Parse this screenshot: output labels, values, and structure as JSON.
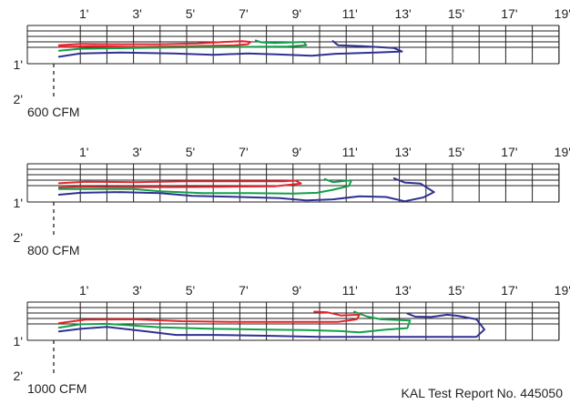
{
  "x_ticks": [
    "1'",
    "3'",
    "5'",
    "7'",
    "9'",
    "11'",
    "13'",
    "15'",
    "17'",
    "19'"
  ],
  "y_ticks": [
    "1'",
    "2'"
  ],
  "report_number": "KAL Test Report No. 445050",
  "colors": {
    "red": "#e1262d",
    "green": "#12a04a",
    "blue": "#2e3192",
    "grid": "#231f20"
  },
  "chart_data": [
    {
      "type": "line",
      "label": "600 CFM",
      "x_unit": "ft",
      "y_unit": "ft",
      "xlim": [
        0,
        20
      ],
      "ylim": [
        0,
        2
      ],
      "series": [
        {
          "color": "red",
          "points": [
            [
              0.2,
              0.52
            ],
            [
              1,
              0.48
            ],
            [
              2.5,
              0.49
            ],
            [
              4,
              0.49
            ],
            [
              5.4,
              0.47
            ],
            [
              6.4,
              0.43
            ],
            [
              7.1,
              0.41
            ],
            [
              7.4,
              0.43
            ],
            [
              7.3,
              0.49
            ],
            [
              6.8,
              0.52
            ],
            [
              5.2,
              0.54
            ],
            [
              3.2,
              0.56
            ],
            [
              1.5,
              0.54
            ],
            [
              0.2,
              0.56
            ]
          ]
        },
        {
          "color": "green",
          "points": [
            [
              0.2,
              0.66
            ],
            [
              1,
              0.61
            ],
            [
              3,
              0.59
            ],
            [
              5.2,
              0.57
            ],
            [
              7.3,
              0.56
            ],
            [
              8.8,
              0.55
            ],
            [
              9.5,
              0.52
            ],
            [
              9.4,
              0.43
            ],
            [
              8.3,
              0.46
            ],
            [
              7.8,
              0.44
            ],
            [
              7.6,
              0.39
            ]
          ]
        },
        {
          "color": "blue",
          "points": [
            [
              0.2,
              0.82
            ],
            [
              1,
              0.73
            ],
            [
              2.5,
              0.71
            ],
            [
              4.5,
              0.73
            ],
            [
              6,
              0.77
            ],
            [
              7.3,
              0.73
            ],
            [
              8.5,
              0.76
            ],
            [
              9.7,
              0.79
            ],
            [
              10.6,
              0.74
            ],
            [
              12.1,
              0.71
            ],
            [
              13.1,
              0.68
            ],
            [
              12.8,
              0.59
            ],
            [
              11.6,
              0.54
            ],
            [
              10.7,
              0.52
            ],
            [
              10.5,
              0.41
            ]
          ]
        }
      ]
    },
    {
      "type": "line",
      "label": "800 CFM",
      "x_unit": "ft",
      "y_unit": "ft",
      "xlim": [
        0,
        20
      ],
      "ylim": [
        0,
        2
      ],
      "series": [
        {
          "color": "red",
          "points": [
            [
              0.2,
              0.51
            ],
            [
              1.2,
              0.47
            ],
            [
              3,
              0.48
            ],
            [
              5,
              0.46
            ],
            [
              7,
              0.46
            ],
            [
              8.6,
              0.46
            ],
            [
              9.1,
              0.44
            ],
            [
              9.3,
              0.52
            ],
            [
              8.3,
              0.59
            ],
            [
              6.5,
              0.6
            ],
            [
              4.5,
              0.61
            ],
            [
              2.5,
              0.61
            ],
            [
              1,
              0.6
            ],
            [
              0.2,
              0.62
            ]
          ]
        },
        {
          "color": "green",
          "points": [
            [
              0.2,
              0.66
            ],
            [
              1.4,
              0.66
            ],
            [
              3,
              0.66
            ],
            [
              4,
              0.72
            ],
            [
              5.6,
              0.77
            ],
            [
              7.4,
              0.77
            ],
            [
              9,
              0.78
            ],
            [
              9.9,
              0.76
            ],
            [
              10.5,
              0.68
            ],
            [
              11.1,
              0.58
            ],
            [
              11.2,
              0.43
            ],
            [
              10.5,
              0.48
            ],
            [
              10.2,
              0.4
            ]
          ]
        },
        {
          "color": "blue",
          "points": [
            [
              0.2,
              0.81
            ],
            [
              1,
              0.76
            ],
            [
              2.5,
              0.74
            ],
            [
              4,
              0.77
            ],
            [
              5.2,
              0.84
            ],
            [
              7,
              0.87
            ],
            [
              8.5,
              0.9
            ],
            [
              9.5,
              0.96
            ],
            [
              10.5,
              0.93
            ],
            [
              11.5,
              0.85
            ],
            [
              12.5,
              0.87
            ],
            [
              13.2,
              0.98
            ],
            [
              13.9,
              0.88
            ],
            [
              14.3,
              0.74
            ],
            [
              13.8,
              0.52
            ],
            [
              13.2,
              0.49
            ],
            [
              12.8,
              0.38
            ]
          ]
        }
      ]
    },
    {
      "type": "line",
      "label": "1000 CFM",
      "x_unit": "ft",
      "y_unit": "ft",
      "xlim": [
        0,
        20
      ],
      "ylim": [
        0,
        2
      ],
      "series": [
        {
          "color": "red",
          "points": [
            [
              0.2,
              0.55
            ],
            [
              1.2,
              0.46
            ],
            [
              3,
              0.45
            ],
            [
              4.8,
              0.5
            ],
            [
              7,
              0.52
            ],
            [
              9,
              0.52
            ],
            [
              10.7,
              0.52
            ],
            [
              11.4,
              0.45
            ],
            [
              11.5,
              0.33
            ],
            [
              10.8,
              0.35
            ],
            [
              10.3,
              0.27
            ],
            [
              9.8,
              0.25
            ]
          ]
        },
        {
          "color": "green",
          "points": [
            [
              0.2,
              0.67
            ],
            [
              1,
              0.58
            ],
            [
              2,
              0.57
            ],
            [
              4,
              0.66
            ],
            [
              6,
              0.7
            ],
            [
              8,
              0.72
            ],
            [
              9.5,
              0.73
            ],
            [
              10.8,
              0.76
            ],
            [
              11.5,
              0.79
            ],
            [
              12.5,
              0.72
            ],
            [
              13.3,
              0.68
            ],
            [
              13.4,
              0.48
            ],
            [
              12.3,
              0.45
            ],
            [
              11.8,
              0.38
            ],
            [
              11.3,
              0.25
            ]
          ]
        },
        {
          "color": "blue",
          "points": [
            [
              0.2,
              0.77
            ],
            [
              1,
              0.7
            ],
            [
              2,
              0.65
            ],
            [
              3.5,
              0.77
            ],
            [
              4.6,
              0.86
            ],
            [
              6,
              0.86
            ],
            [
              8,
              0.88
            ],
            [
              10,
              0.91
            ],
            [
              12,
              0.91
            ],
            [
              14,
              0.91
            ],
            [
              15.9,
              0.91
            ],
            [
              16.2,
              0.72
            ],
            [
              15.9,
              0.45
            ],
            [
              15.2,
              0.36
            ],
            [
              14.8,
              0.33
            ],
            [
              14.2,
              0.39
            ],
            [
              13.6,
              0.38
            ],
            [
              13.3,
              0.3
            ]
          ]
        }
      ]
    }
  ]
}
